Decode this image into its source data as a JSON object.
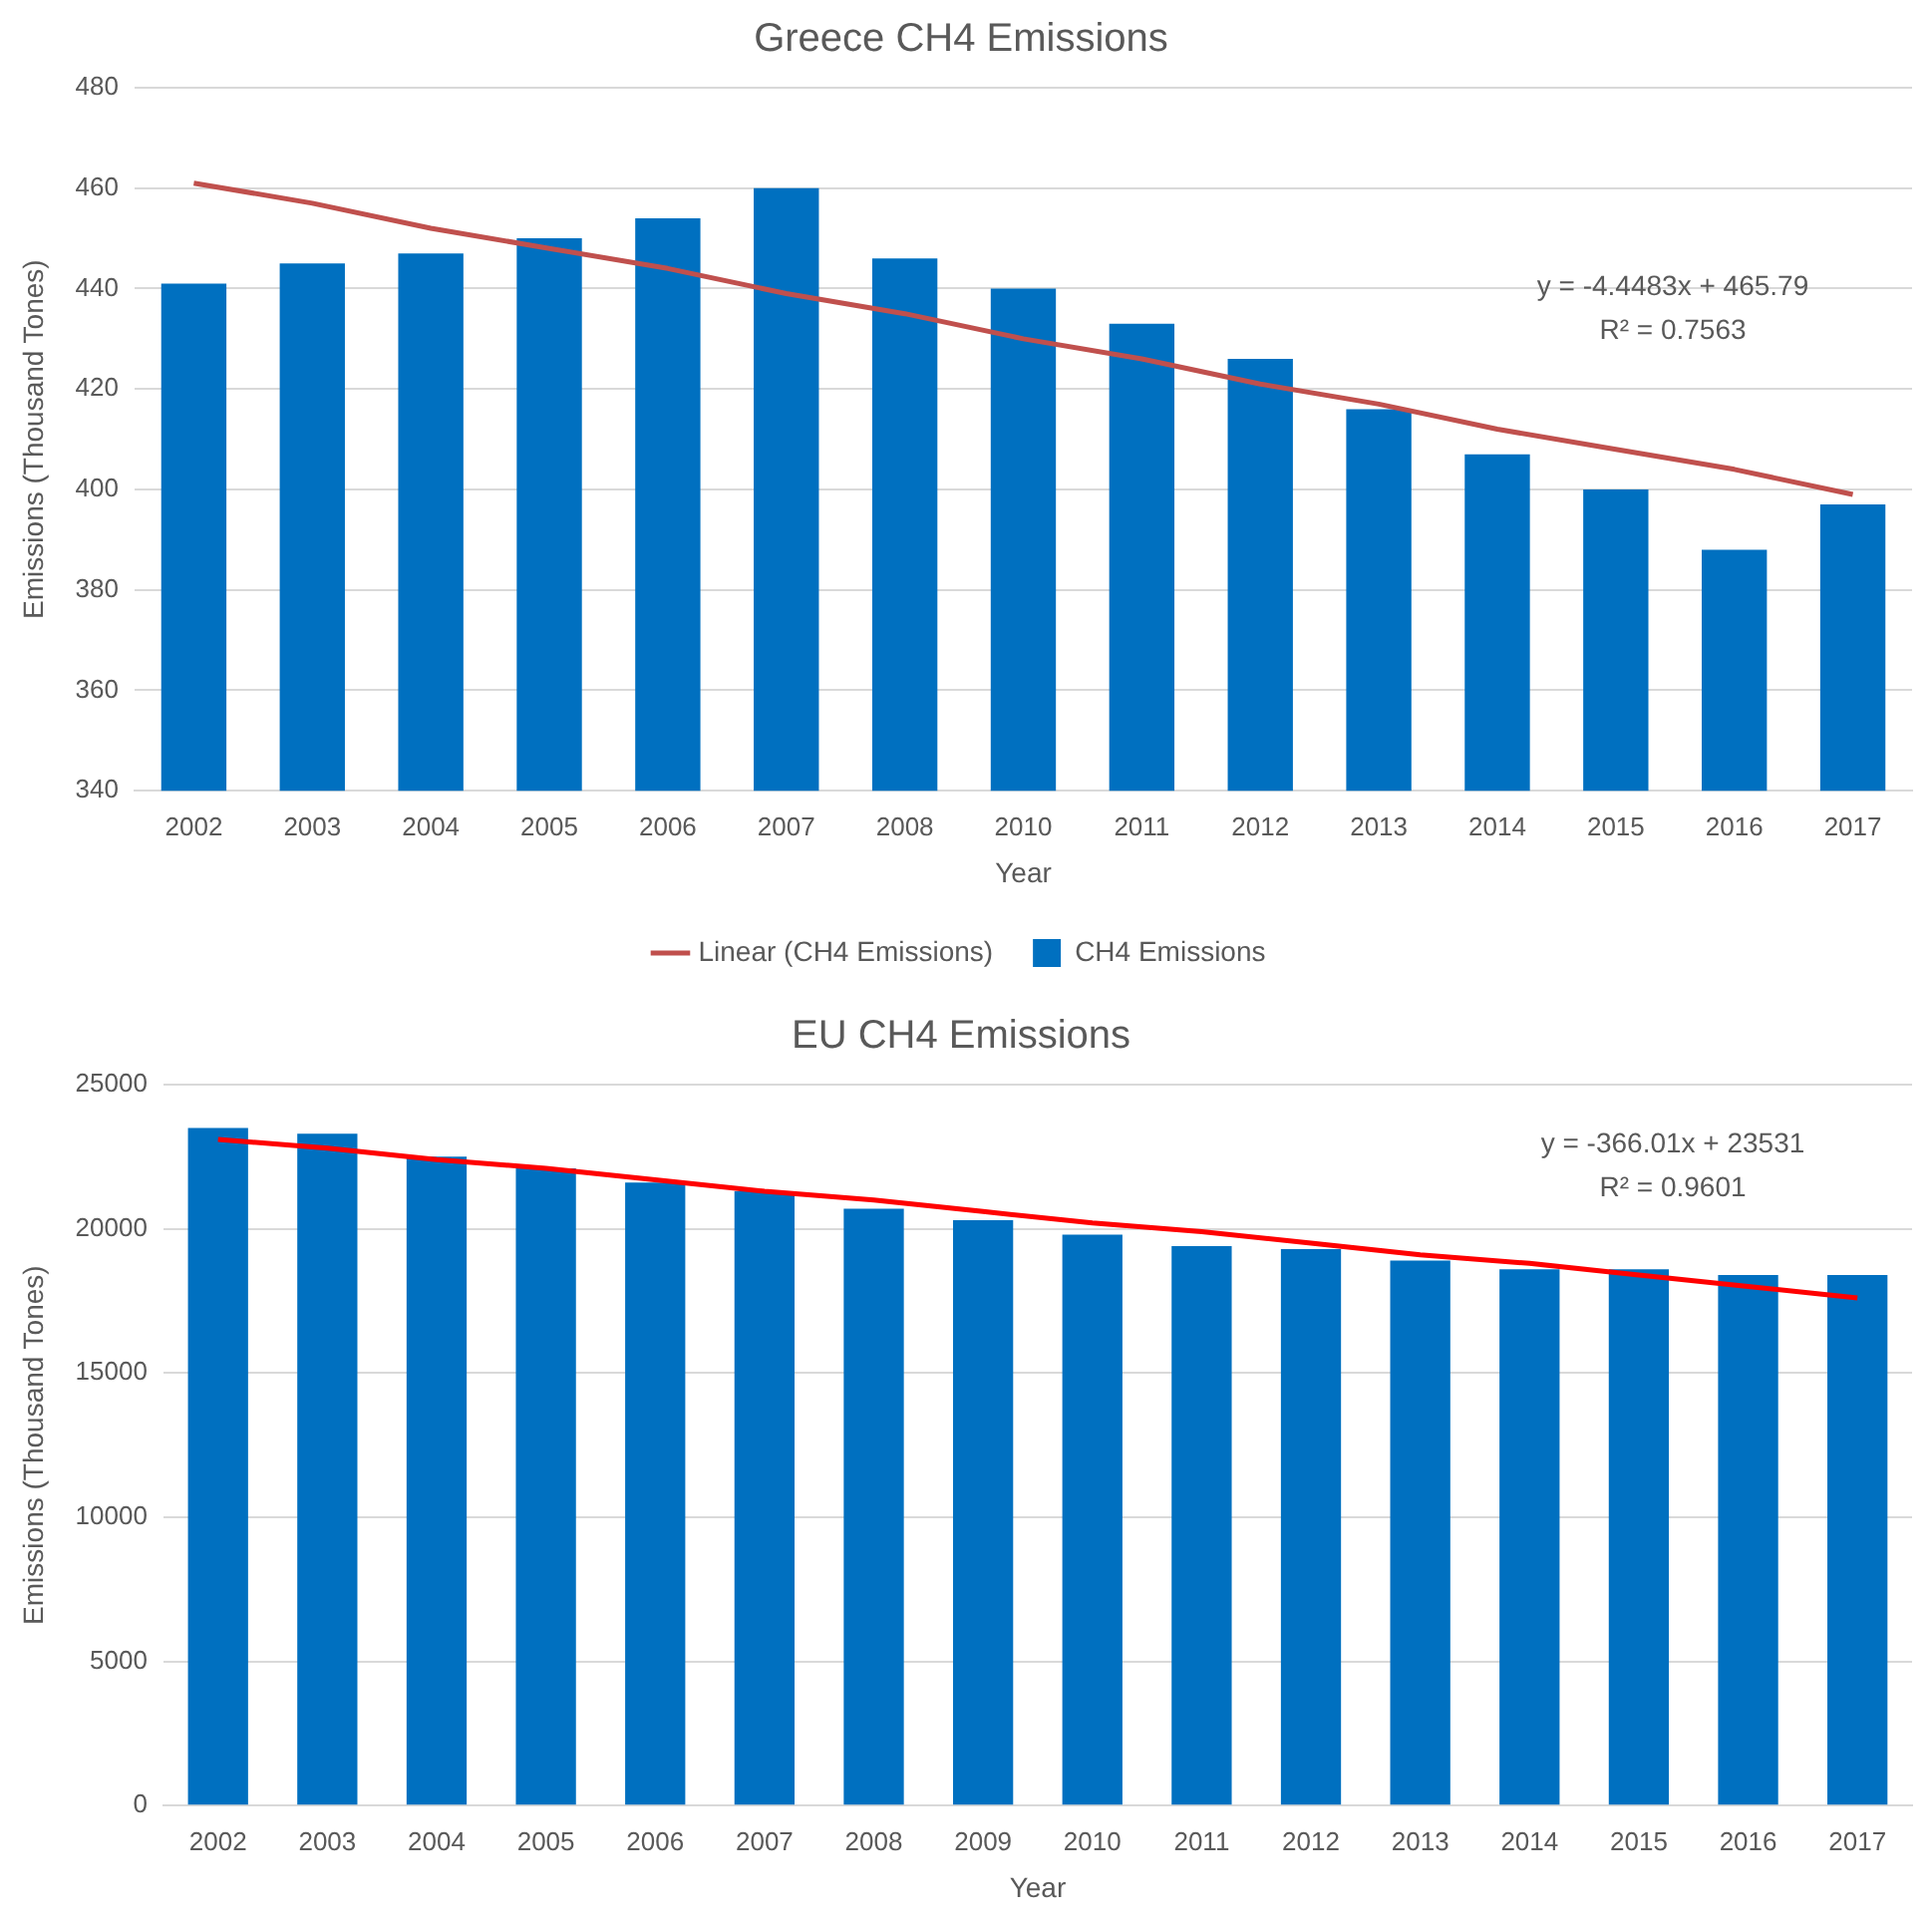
{
  "chart_data": [
    {
      "type": "bar",
      "title": "Greece CH4 Emissions",
      "xlabel": "Year",
      "ylabel": "Emissions (Thousand Tones)",
      "categories": [
        "2002",
        "2003",
        "2004",
        "2005",
        "2006",
        "2007",
        "2008",
        "2010",
        "2011",
        "2012",
        "2013",
        "2014",
        "2015",
        "2016",
        "2017"
      ],
      "series": [
        {
          "name": "CH4 Emissions",
          "color": "#0070c0",
          "values": [
            441,
            445,
            447,
            450,
            454,
            460,
            446,
            440,
            433,
            426,
            416,
            407,
            400,
            388,
            397
          ]
        },
        {
          "name": "Linear (CH4 Emissions)",
          "type": "line",
          "color": "#c0504d",
          "values": [
            461,
            457,
            452,
            448,
            444,
            439,
            435,
            430,
            426,
            421,
            417,
            412,
            408,
            404,
            399
          ]
        }
      ],
      "ylim": [
        340,
        480
      ],
      "yticks": [
        340,
        360,
        380,
        400,
        420,
        440,
        460,
        480
      ],
      "grid": "y",
      "legend": "bottom",
      "marker": "none",
      "annotations": [
        "y = -4.4483x + 465.79",
        "R² = 0.7563"
      ]
    },
    {
      "type": "bar",
      "title": "EU CH4 Emissions",
      "xlabel": "Year",
      "ylabel": "Emissions (Thousand Tones)",
      "categories": [
        "2002",
        "2003",
        "2004",
        "2005",
        "2006",
        "2007",
        "2008",
        "2009",
        "2010",
        "2011",
        "2012",
        "2013",
        "2014",
        "2015",
        "2016",
        "2017"
      ],
      "series": [
        {
          "color": "#0070c0",
          "values": [
            23500,
            23300,
            22500,
            22100,
            21600,
            21300,
            20700,
            20300,
            19800,
            19400,
            19300,
            18900,
            18600,
            18600,
            18400,
            18400
          ]
        },
        {
          "type": "line",
          "color": "#ff0000",
          "values": [
            23100,
            22800,
            22400,
            22100,
            21700,
            21300,
            21000,
            20600,
            20200,
            19900,
            19500,
            19100,
            18800,
            18400,
            18000,
            17600
          ]
        }
      ],
      "ylim": [
        0,
        25000
      ],
      "yticks": [
        0,
        5000,
        10000,
        15000,
        20000,
        25000
      ],
      "grid": "y",
      "marker": "none",
      "annotations": [
        "y = -366.01x + 23531",
        "R² = 0.9601"
      ]
    }
  ]
}
